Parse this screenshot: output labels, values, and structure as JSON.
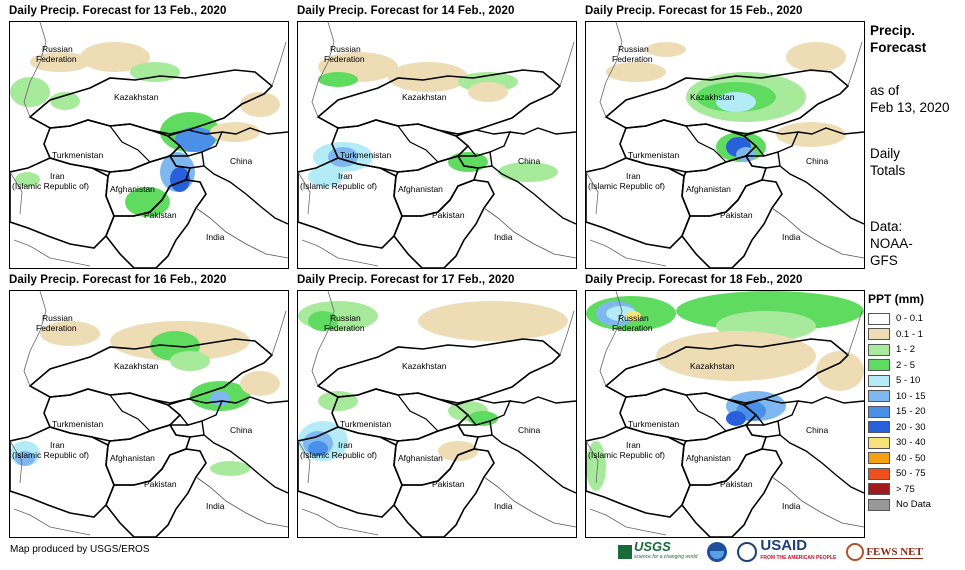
{
  "panels": [
    {
      "title": "Daily Precip. Forecast for 13 Feb., 2020",
      "day": 13
    },
    {
      "title": "Daily Precip. Forecast for 14 Feb., 2020",
      "day": 14
    },
    {
      "title": "Daily Precip. Forecast for 15 Feb., 2020",
      "day": 15
    },
    {
      "title": "Daily Precip. Forecast for 16 Feb., 2020",
      "day": 16
    },
    {
      "title": "Daily Precip. Forecast for 17 Feb., 2020",
      "day": 17
    },
    {
      "title": "Daily Precip. Forecast for 18 Feb., 2020",
      "day": 18
    }
  ],
  "map_labels": {
    "russia_1": "Russian",
    "russia_2": "Federation",
    "kazakhstan": "Kazakhstan",
    "turkmenistan": "Turkmenistan",
    "china": "China",
    "iran_1": "Iran",
    "iran_2": "(Islamic Republic of)",
    "afghanistan": "Afghanistan",
    "pakistan": "Pakistan",
    "india": "India"
  },
  "side_info": {
    "title_1": "Precip.",
    "title_2": "Forecast",
    "asof_1": "as of",
    "asof_2": "Feb 13, 2020",
    "totals_1": "Daily",
    "totals_2": "Totals",
    "data_1": "Data:",
    "data_2": "NOAA-",
    "data_3": "GFS"
  },
  "legend": {
    "title": "PPT (mm)",
    "items": [
      {
        "label": "0 - 0.1",
        "color": "#ffffff"
      },
      {
        "label": "0.1 - 1",
        "color": "#eedcb5"
      },
      {
        "label": "1 - 2",
        "color": "#a8ea9c"
      },
      {
        "label": "2 - 5",
        "color": "#5fdc5f"
      },
      {
        "label": "5 - 10",
        "color": "#b3ecf7"
      },
      {
        "label": "10 - 15",
        "color": "#7fb8f0"
      },
      {
        "label": "15 - 20",
        "color": "#4a90e8"
      },
      {
        "label": "20 - 30",
        "color": "#2860dc"
      },
      {
        "label": "30 - 40",
        "color": "#f8e37a"
      },
      {
        "label": "40 - 50",
        "color": "#f4a012"
      },
      {
        "label": "50 - 75",
        "color": "#f0501c"
      },
      {
        "label": "> 75",
        "color": "#a01c1c"
      },
      {
        "label": "No Data",
        "color": "#999999"
      }
    ]
  },
  "footer": "Map produced by USGS/EROS",
  "logos": {
    "usgs": "USGS",
    "usgs_tag": "science for a changing world",
    "usaid": "USAID",
    "usaid_tag": "FROM THE AMERICAN PEOPLE",
    "fews": "FEWS NET"
  }
}
